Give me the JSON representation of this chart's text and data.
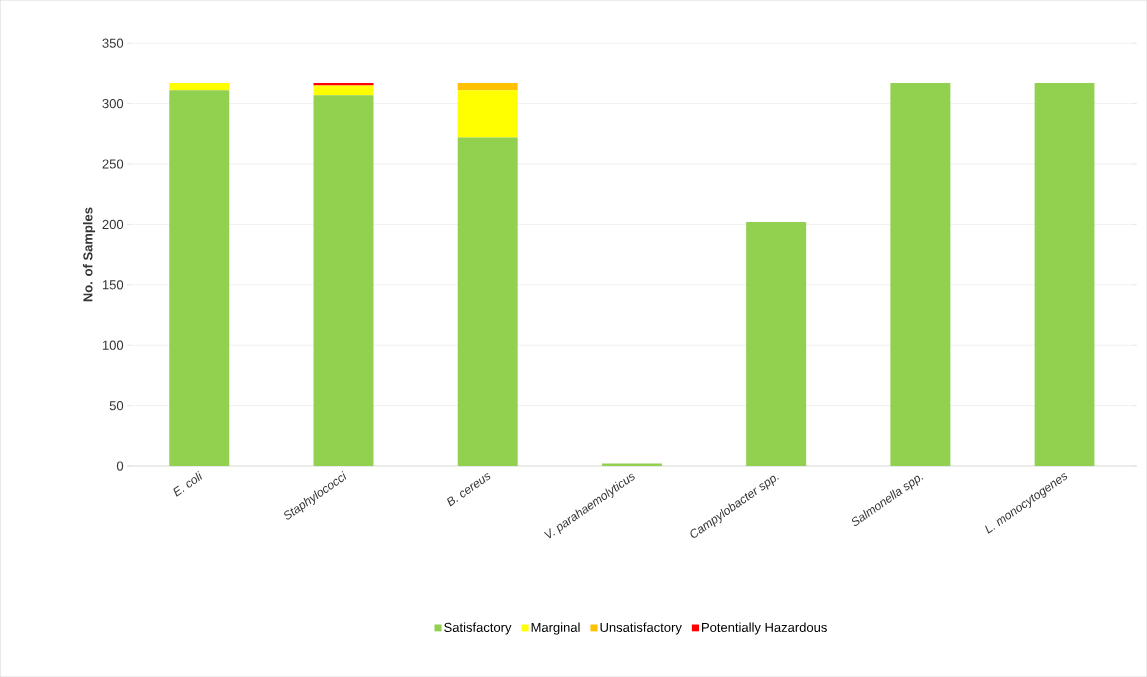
{
  "chart_data": {
    "type": "bar",
    "stacked": true,
    "ylabel": "No. of Samples",
    "categories": [
      "*E. coli*",
      "*Staphylococci*",
      "*B. cereus*",
      "*V. parahaemolyticus*",
      "*Campylobacter spp.*",
      "*Salmonella spp.*",
      "*L. monocytogenes*"
    ],
    "series": [
      {
        "name": "Satisfactory",
        "color": "#92d050",
        "values": [
          311,
          307,
          272,
          2,
          202,
          317,
          317
        ]
      },
      {
        "name": "Marginal",
        "color": "#ffff00",
        "values": [
          6,
          8,
          39,
          0,
          0,
          0,
          0
        ]
      },
      {
        "name": "Unsatisfactory",
        "color": "#ffc000",
        "values": [
          0,
          0,
          6,
          0,
          0,
          0,
          0
        ]
      },
      {
        "name": "Potentially Hazardous",
        "color": "#ff0000",
        "values": [
          0,
          2,
          0,
          0,
          0,
          0,
          0
        ]
      }
    ],
    "ylim": [
      0,
      350
    ],
    "yticks": [
      0,
      50,
      100,
      150,
      200,
      250,
      300,
      350
    ],
    "grid": "y",
    "legend": "bottom"
  }
}
